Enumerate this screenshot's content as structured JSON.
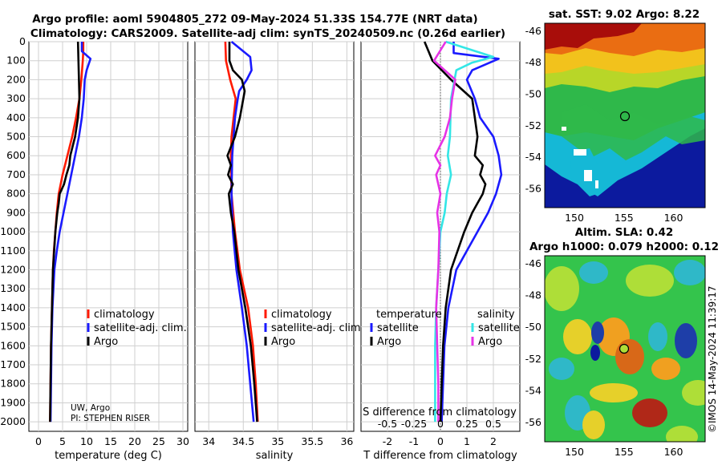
{
  "title_line1": "Argo profile: aoml 5904805_272 09-May-2024 51.33S 154.77E (NRT data)",
  "title_line2": "Climatology: CARS2009. Satellite-adj clim: synTS_20240509.nc (0.26d earlier)",
  "colors": {
    "climatology": "#ff1a00",
    "satellite_adj": "#1a1aff",
    "argo": "#000000",
    "sat_salinity": "#33e6e6",
    "argo_salinity": "#e633e6"
  },
  "legend": {
    "climatology": "climatology",
    "satellite_adj": "satellite-adj. clim.",
    "argo": "Argo"
  },
  "diff_legend": {
    "temperature_header": "temperature",
    "salinity_header": "salinity",
    "satellite": "satellite",
    "argo": "Argo"
  },
  "credit": {
    "line1": "UW, Argo",
    "line2": "PI: STEPHEN RISER"
  },
  "watermark": "©IMOS 14-May-2024 11:39:17",
  "sst_map": {
    "title": "sat. SST: 9.02 Argo: 8.22",
    "yticks": [
      "-46",
      "-48",
      "-50",
      "-52",
      "-54",
      "-56"
    ],
    "xticks": [
      "150",
      "155",
      "160"
    ]
  },
  "sla_map": {
    "title1": "Altim. SLA: 0.42",
    "title2": "Argo h1000: 0.079 h2000: 0.12",
    "yticks": [
      "-46",
      "-48",
      "-50",
      "-52",
      "-54",
      "-56"
    ],
    "xticks": [
      "150",
      "155",
      "160"
    ]
  },
  "chart_data": [
    {
      "type": "line",
      "title": "",
      "xlabel": "temperature (deg C)",
      "ylabel": "",
      "xlim": [
        -2,
        31
      ],
      "ylim": [
        2050,
        0
      ],
      "xticks": [
        "0",
        "5",
        "10",
        "15",
        "20",
        "25",
        "30"
      ],
      "yticks": [
        "0",
        "100",
        "200",
        "300",
        "400",
        "500",
        "600",
        "700",
        "800",
        "900",
        "1000",
        "1100",
        "1200",
        "1300",
        "1400",
        "1500",
        "1600",
        "1700",
        "1800",
        "1900",
        "2000"
      ],
      "series": [
        {
          "name": "climatology",
          "depth": [
            0,
            50,
            100,
            200,
            300,
            400,
            500,
            600,
            700,
            800,
            900,
            1000,
            1100,
            1200,
            1400,
            1600,
            1800,
            2000
          ],
          "values": [
            9.3,
            9.3,
            9.2,
            8.9,
            8.5,
            7.8,
            7.0,
            6.0,
            5.0,
            4.2,
            3.8,
            3.5,
            3.2,
            3.0,
            2.8,
            2.6,
            2.5,
            2.4
          ]
        },
        {
          "name": "satellite-adj. clim.",
          "depth": [
            0,
            50,
            90,
            150,
            200,
            300,
            400,
            500,
            600,
            700,
            800,
            900,
            1000,
            1100,
            1200,
            1400,
            1600,
            1800,
            2000
          ],
          "values": [
            9.0,
            9.0,
            10.8,
            10.0,
            9.6,
            9.4,
            9.0,
            8.4,
            7.6,
            6.8,
            6.0,
            5.2,
            4.4,
            3.8,
            3.3,
            2.9,
            2.7,
            2.6,
            2.5
          ]
        },
        {
          "name": "Argo",
          "depth": [
            0,
            100,
            200,
            300,
            400,
            500,
            600,
            650,
            700,
            750,
            800,
            850,
            900,
            1000,
            1200,
            1400,
            1600,
            1800,
            2000
          ],
          "values": [
            8.2,
            8.3,
            8.4,
            8.5,
            8.2,
            7.6,
            6.6,
            6.4,
            5.8,
            5.3,
            4.4,
            4.2,
            3.9,
            3.5,
            3.0,
            2.8,
            2.6,
            2.5,
            2.4
          ]
        }
      ]
    },
    {
      "type": "line",
      "title": "",
      "xlabel": "salinity",
      "ylabel": "",
      "xlim": [
        33.8,
        36.1
      ],
      "ylim": [
        2050,
        0
      ],
      "xticks": [
        "34",
        "34.5",
        "35",
        "35.5",
        "36"
      ],
      "series": [
        {
          "name": "climatology",
          "depth": [
            0,
            100,
            200,
            300,
            400,
            500,
            600,
            800,
            1000,
            1200,
            1400,
            1600,
            1800,
            2000
          ],
          "values": [
            34.24,
            34.25,
            34.31,
            34.39,
            34.36,
            34.33,
            34.32,
            34.33,
            34.38,
            34.45,
            34.57,
            34.64,
            34.68,
            34.71
          ]
        },
        {
          "name": "satellite-adj. clim.",
          "depth": [
            0,
            80,
            150,
            200,
            260,
            300,
            400,
            500,
            600,
            800,
            1000,
            1200,
            1400,
            1600,
            1800,
            2000
          ],
          "values": [
            34.33,
            34.6,
            34.62,
            34.55,
            34.44,
            34.42,
            34.38,
            34.36,
            34.34,
            34.33,
            34.35,
            34.4,
            34.48,
            34.55,
            34.6,
            34.65
          ]
        },
        {
          "name": "Argo",
          "depth": [
            0,
            100,
            150,
            200,
            260,
            300,
            400,
            500,
            600,
            650,
            700,
            750,
            800,
            900,
            1000,
            1200,
            1400,
            1600,
            1800,
            2000
          ],
          "values": [
            34.3,
            34.3,
            34.35,
            34.48,
            34.52,
            34.5,
            34.45,
            34.38,
            34.27,
            34.32,
            34.28,
            34.35,
            34.29,
            34.32,
            34.37,
            34.43,
            34.53,
            34.61,
            34.66,
            34.7
          ]
        }
      ]
    },
    {
      "type": "line",
      "title": "",
      "xlabel": "T difference from climatology",
      "ylabel": "",
      "xlim": [
        -3,
        3
      ],
      "ylim": [
        2050,
        0
      ],
      "xticks": [
        "-2",
        "-1",
        "0",
        "1",
        "2"
      ],
      "secondary_xlabel": "S difference from climatology",
      "secondary_xticks": [
        "-0.5",
        "-0.25",
        "0",
        "0.25",
        "0.5"
      ],
      "secondary_xlim": [
        -0.75,
        0.75
      ],
      "series": [
        {
          "name": "temperature satellite",
          "depth": [
            0,
            60,
            90,
            150,
            200,
            300,
            400,
            500,
            600,
            700,
            800,
            900,
            1000,
            1100,
            1200,
            1400,
            1600,
            1800,
            2000
          ],
          "values": [
            0.5,
            0.5,
            2.2,
            1.2,
            1.0,
            1.3,
            1.5,
            2.0,
            2.2,
            2.3,
            2.1,
            1.8,
            1.4,
            1.0,
            0.6,
            0.3,
            0.15,
            0.1,
            0.05
          ]
        },
        {
          "name": "temperature Argo",
          "depth": [
            0,
            100,
            200,
            300,
            400,
            500,
            600,
            650,
            700,
            750,
            800,
            850,
            900,
            1000,
            1200,
            1400,
            1600,
            1800,
            2000
          ],
          "values": [
            -0.6,
            -0.3,
            0.4,
            1.2,
            1.3,
            1.4,
            1.3,
            1.6,
            1.5,
            1.7,
            1.6,
            1.4,
            1.2,
            0.9,
            0.4,
            0.2,
            0.1,
            0.05,
            0.0
          ]
        },
        {
          "name": "salinity satellite",
          "depth": [
            0,
            80,
            110,
            150,
            300,
            500,
            600,
            700,
            800,
            900,
            1000,
            1200,
            1400,
            1600,
            1800,
            2000
          ],
          "values": [
            0.05,
            0.5,
            0.3,
            0.15,
            0.1,
            0.09,
            0.07,
            0.1,
            0.06,
            0.04,
            0.0,
            -0.02,
            -0.04,
            -0.05,
            -0.05,
            -0.05
          ]
        },
        {
          "name": "salinity Argo",
          "depth": [
            0,
            100,
            200,
            300,
            400,
            500,
            600,
            650,
            700,
            800,
            900,
            1000,
            1200,
            1400,
            1600,
            1800,
            2000
          ],
          "values": [
            0.05,
            -0.06,
            0.14,
            0.11,
            0.09,
            0.04,
            -0.05,
            0.0,
            -0.04,
            0.0,
            -0.03,
            -0.01,
            -0.02,
            -0.04,
            -0.03,
            -0.02,
            -0.02
          ]
        }
      ]
    }
  ]
}
